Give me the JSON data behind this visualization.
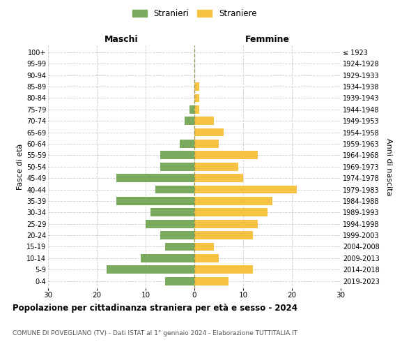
{
  "age_groups": [
    "0-4",
    "5-9",
    "10-14",
    "15-19",
    "20-24",
    "25-29",
    "30-34",
    "35-39",
    "40-44",
    "45-49",
    "50-54",
    "55-59",
    "60-64",
    "65-69",
    "70-74",
    "75-79",
    "80-84",
    "85-89",
    "90-94",
    "95-99",
    "100+"
  ],
  "birth_years": [
    "2019-2023",
    "2014-2018",
    "2009-2013",
    "2004-2008",
    "1999-2003",
    "1994-1998",
    "1989-1993",
    "1984-1988",
    "1979-1983",
    "1974-1978",
    "1969-1973",
    "1964-1968",
    "1959-1963",
    "1954-1958",
    "1949-1953",
    "1944-1948",
    "1939-1943",
    "1934-1938",
    "1929-1933",
    "1924-1928",
    "≤ 1923"
  ],
  "males": [
    6,
    18,
    11,
    6,
    7,
    10,
    9,
    16,
    8,
    16,
    7,
    7,
    3,
    0,
    2,
    1,
    0,
    0,
    0,
    0,
    0
  ],
  "females": [
    7,
    12,
    5,
    4,
    12,
    13,
    15,
    16,
    21,
    10,
    9,
    13,
    5,
    6,
    4,
    1,
    1,
    1,
    0,
    0,
    0
  ],
  "male_color": "#7aaa5e",
  "female_color": "#f5c242",
  "male_label": "Stranieri",
  "female_label": "Straniere",
  "title": "Popolazione per cittadinanza straniera per età e sesso - 2024",
  "subtitle": "COMUNE DI POVEGLIANO (TV) - Dati ISTAT al 1° gennaio 2024 - Elaborazione TUTTITALIA.IT",
  "xlabel_left": "Maschi",
  "xlabel_right": "Femmine",
  "ylabel_left": "Fasce di età",
  "ylabel_right": "Anni di nascita",
  "xlim": 30,
  "background_color": "#ffffff",
  "grid_color": "#cccccc"
}
